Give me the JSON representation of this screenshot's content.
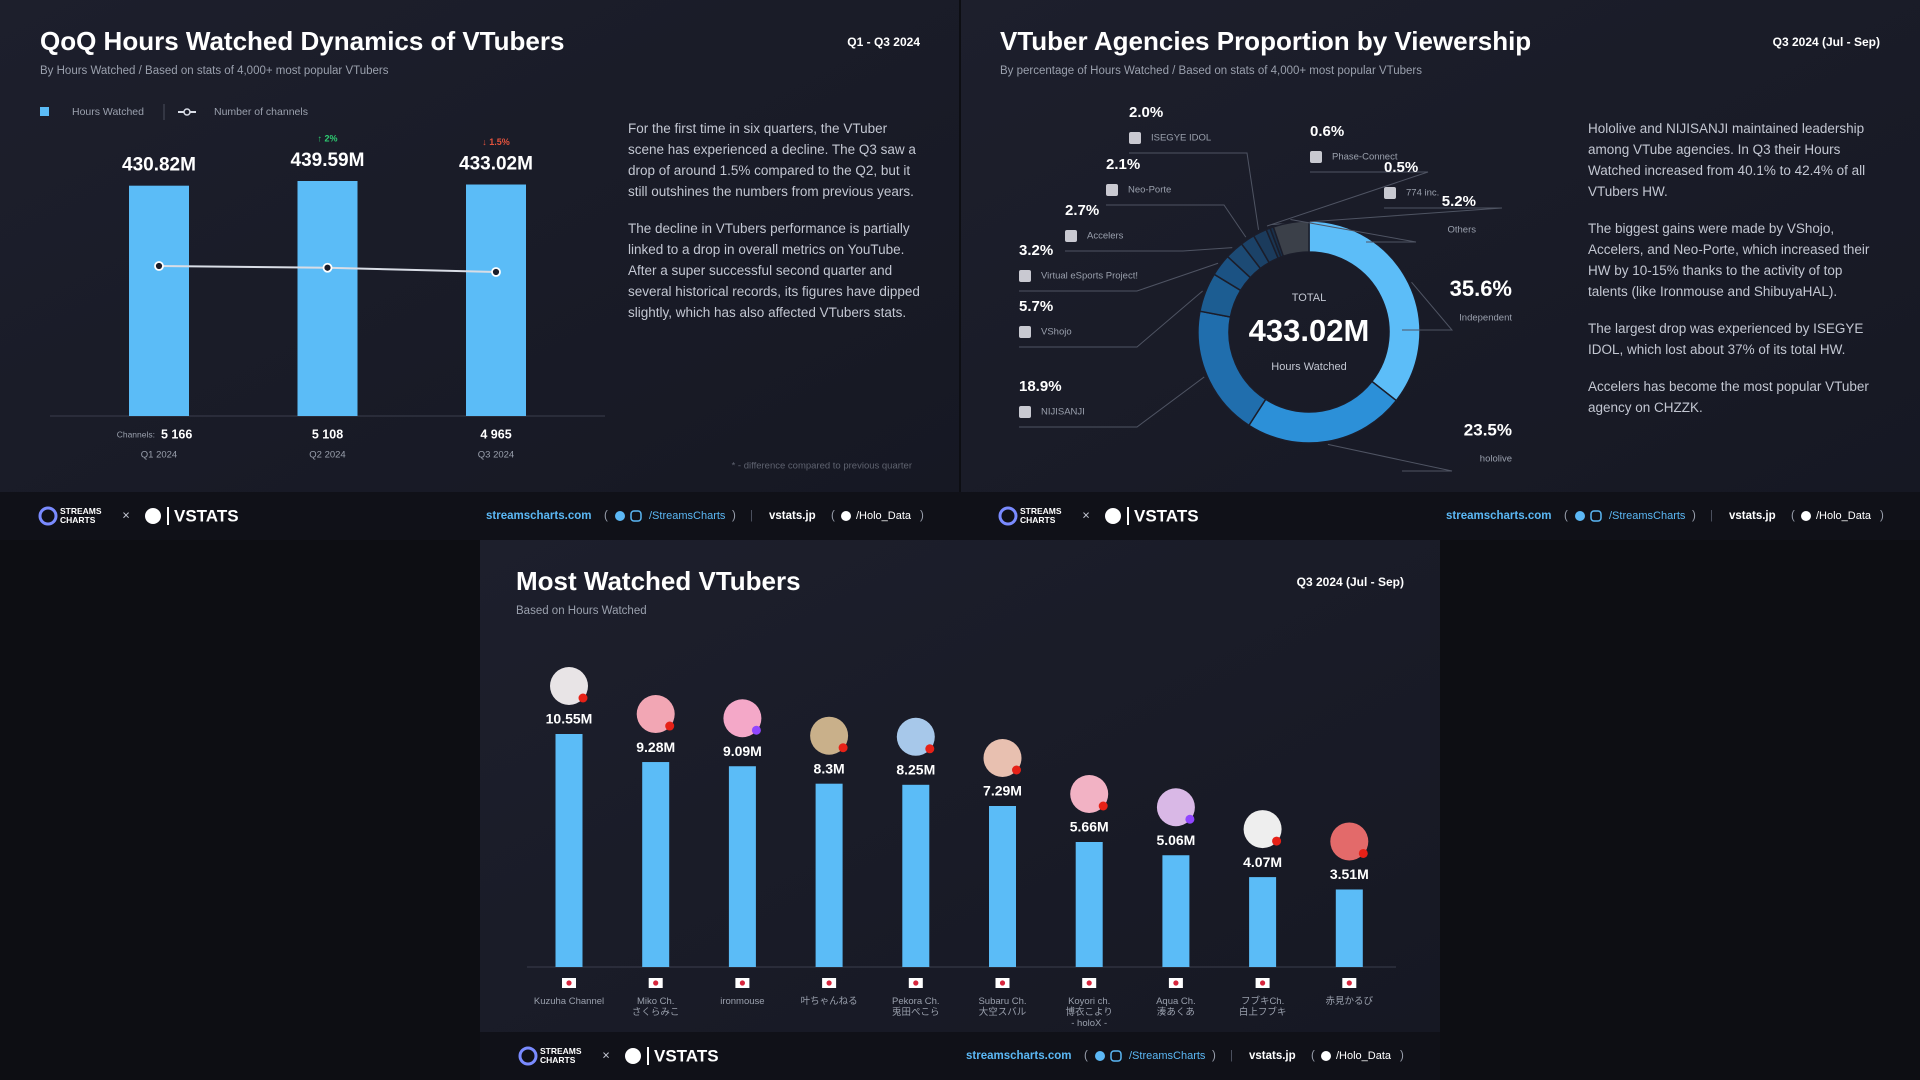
{
  "chart_data": [
    {
      "type": "bar",
      "title": "QoQ Hours Watched Dynamics of VTubers",
      "subtitle": "By Hours Watched / Based on stats of 4,000+ most popular VTubers",
      "period": "Q1 - Q3 2024",
      "categories": [
        "Q1 2024",
        "Q2 2024",
        "Q3 2024"
      ],
      "series": [
        {
          "name": "Hours Watched",
          "color": "#5bbcf7",
          "values": [
            430.82,
            439.59,
            433.02
          ],
          "value_labels": [
            "430.82M",
            "439.59M",
            "433.02M"
          ],
          "change_labels": [
            null,
            "↑ 2%",
            "↓ 1.5%"
          ],
          "change_colors": [
            null,
            "#2ecc71",
            "#e5533d"
          ]
        },
        {
          "name": "Number of channels",
          "type": "line",
          "color": "#d9dde6",
          "values": [
            5166,
            5108,
            4965
          ],
          "value_labels": [
            "5 166",
            "5 108",
            "4 965"
          ],
          "row_label": "Channels:"
        }
      ],
      "description": [
        "For the first time in six quarters, the VTuber scene has experienced a decline. The Q3 saw a drop of around 1.5% compared to the Q2, but it still outshines the numbers from previous years.",
        "The decline in VTubers performance is partially linked to a drop in overall metrics on YouTube. After a super successful second quarter and several historical records, its figures have dipped slightly, which has also affected VTubers stats."
      ],
      "note": "* - difference compared to previous quarter"
    },
    {
      "type": "pie",
      "donut": true,
      "title": "VTuber Agencies Proportion by Viewership",
      "subtitle": "By percentage of Hours Watched / Based on stats of 4,000+ most popular VTubers",
      "period": "Q3 2024 (Jul - Sep)",
      "categories": [
        "Independent",
        "hololive",
        "NIJISANJI",
        "VShojo",
        "Virtual eSports Project!",
        "Accelers",
        "Neo-Porte",
        "ISEGYE IDOL",
        "Phase-Connect",
        "774 inc.",
        "Others"
      ],
      "values": [
        35.6,
        23.5,
        18.9,
        5.7,
        3.2,
        2.7,
        2.1,
        2.0,
        0.6,
        0.5,
        5.2
      ],
      "value_labels": [
        "35.6%",
        "23.5%",
        "18.9%",
        "5.7%",
        "3.2%",
        "2.7%",
        "2.1%",
        "2.0%",
        "0.6%",
        "0.5%",
        "5.2%"
      ],
      "colors": [
        "#5cbdf8",
        "#2c90d8",
        "#206ead",
        "#1c5d92",
        "#1b5283",
        "#1c4a74",
        "#1b4268",
        "#1b3b5c",
        "#1a3552",
        "#19304a",
        "#3b4049"
      ],
      "center_label": "TOTAL",
      "center_value": "433.02M",
      "center_sublabel": "Hours Watched",
      "description": [
        "Hololive and NIJISANJI maintained leadership among VTube agencies. In Q3 their Hours Watched increased from 40.1% to 42.4% of all VTubers HW.",
        "The biggest gains were made by VShojo, Accelers, and Neo-Porte, which increased their HW by 10-15% thanks to the activity of top talents (like Ironmouse and ShibuyaHAL).",
        "The largest drop was experienced by ISEGYE IDOL, which lost about 37% of its total HW.",
        "Accelers has become the most popular VTuber agency on CHZZK."
      ]
    },
    {
      "type": "bar",
      "title": "Most Watched VTubers",
      "subtitle": "Based on Hours Watched",
      "period": "Q3 2024 (Jul - Sep)",
      "categories": [
        "Kuzuha Channel",
        "Miko Ch.\nさくらみこ",
        "ironmouse",
        "叶ちゃんねる",
        "Pekora Ch.\n兎田ぺこら",
        "Subaru Ch.\n大空スバル",
        "Koyori ch.\n博衣こより\n- holoX -",
        "Aqua Ch.\n湊あくあ",
        "フブキCh.\n白上フブキ",
        "赤見かるび"
      ],
      "values": [
        10.55,
        9.28,
        9.09,
        8.3,
        8.25,
        7.29,
        5.66,
        5.06,
        4.07,
        3.51
      ],
      "value_labels": [
        "10.55M",
        "9.28M",
        "9.09M",
        "8.3M",
        "8.25M",
        "7.29M",
        "5.66M",
        "5.06M",
        "4.07M",
        "3.51M"
      ],
      "color": "#5bbcf7"
    }
  ],
  "footer": {
    "streams_logo": "STREAMS\nCHARTS",
    "times": "×",
    "vstats_logo": "VSTATS",
    "site_1": "streamscharts.com",
    "handle_1": "/StreamsCharts",
    "site_2": "vstats.jp",
    "handle_2": "/Holo_Data",
    "open": "(",
    "close": ")",
    "separator": "|"
  }
}
